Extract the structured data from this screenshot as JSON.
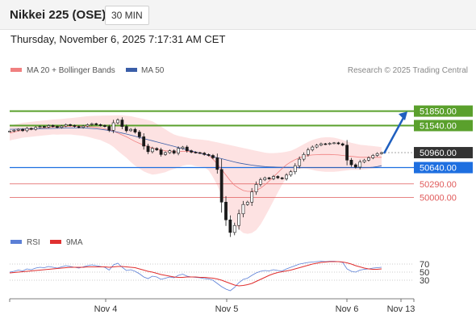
{
  "header": {
    "title": "Nikkei 225 (OSE)",
    "timeframe": "30 MIN",
    "datetime": "Thursday, November 6, 2025 7:17:31 AM CET"
  },
  "legend": {
    "bb_label": "MA 20 + Bollinger Bands",
    "ma50_label": "MA 50",
    "credit": "Research © 2025 Trading Central",
    "rsi_label": "RSI",
    "rsi_ma_label": "9MA"
  },
  "colors": {
    "bb_fill": "#fde2e2",
    "ma20": "#f08080",
    "ma50": "#3a5ea8",
    "candle": "#1a1a1a",
    "resistance": "#5aa02c",
    "support_blue": "#1e6fe0",
    "support_red": "#e05a5a",
    "rsi": "#5b7fd6",
    "rsi_ma": "#e03030",
    "arrow": "#1f5fbf",
    "current": "#333333"
  },
  "chart_data": [
    {
      "type": "candlestick",
      "title": "Nikkei 225 (OSE)",
      "ylim": [
        49300,
        52500
      ],
      "x_ticks": [
        "Nov 4",
        "Nov 5",
        "Nov 6",
        "Nov 13"
      ],
      "series": [
        {
          "name": "Price (close)",
          "values": [
            51420,
            51440,
            51460,
            51430,
            51480,
            51460,
            51500,
            51520,
            51510,
            51540,
            51520,
            51500,
            51530,
            51560,
            51540,
            51520,
            51500,
            51530,
            51560,
            51580,
            51560,
            51540,
            51520,
            51440,
            51600,
            51660,
            51520,
            51430,
            51460,
            51400,
            51300,
            51100,
            50980,
            51050,
            51020,
            50920,
            50960,
            51000,
            50950,
            51050,
            51080,
            51000,
            50970,
            50960,
            50950,
            50920,
            50900,
            50850,
            50600,
            49900,
            49520,
            49250,
            49400,
            49650,
            49850,
            49900,
            50120,
            50280,
            50380,
            50420,
            50400,
            50450,
            50420,
            50400,
            50480,
            50550,
            50680,
            50820,
            50920,
            51020,
            51080,
            51120,
            51150,
            51140,
            51160,
            51170,
            51150,
            51120,
            50800,
            50700,
            50650,
            50760,
            50800,
            50850,
            50900,
            50940,
            50960
          ]
        },
        {
          "name": "MA 20",
          "values": [
            51380,
            51400,
            51420,
            51440,
            51450,
            51460,
            51470,
            51480,
            51490,
            51500,
            51510,
            51510,
            51515,
            51520,
            51525,
            51525,
            51525,
            51525,
            51520,
            51510,
            51500,
            51490,
            51470,
            51450,
            51420,
            51380,
            51340,
            51300,
            51250,
            51200,
            51160,
            51120,
            51090,
            51060,
            51040,
            51020,
            51000,
            50990,
            50980,
            50980,
            50990,
            50990,
            50980,
            50960,
            50950,
            50940,
            50900,
            50820,
            50720,
            50600,
            50480,
            50360,
            50260,
            50200,
            50150,
            50130,
            50130,
            50150,
            50200,
            50270,
            50350,
            50440,
            50530,
            50620,
            50700,
            50760,
            50810,
            50850,
            50880,
            50900,
            50910,
            50915,
            50920,
            50920,
            50920,
            50915,
            50910,
            50900,
            50890,
            50880,
            50870,
            50860,
            50860,
            50860,
            50860,
            50860,
            50860
          ]
        },
        {
          "name": "MA 50",
          "values": [
            51460,
            51462,
            51464,
            51466,
            51468,
            51470,
            51472,
            51474,
            51476,
            51478,
            51480,
            51482,
            51484,
            51486,
            51488,
            51490,
            51490,
            51488,
            51484,
            51478,
            51470,
            51460,
            51448,
            51434,
            51418,
            51400,
            51380,
            51358,
            51334,
            51310,
            51286,
            51262,
            51238,
            51214,
            51190,
            51166,
            51142,
            51118,
            51094,
            51070,
            51046,
            51022,
            50998,
            50974,
            50950,
            50926,
            50902,
            50878,
            50854,
            50830,
            50806,
            50782,
            50760,
            50740,
            50722,
            50706,
            50692,
            50680,
            50670,
            50662,
            50656,
            50652,
            50649,
            50647,
            50646,
            50645,
            50644,
            50643,
            50642,
            50641,
            50640,
            50640,
            50640,
            50640,
            50640,
            50640,
            50640,
            50640,
            50640,
            50640,
            50640,
            50640,
            50640,
            50640,
            50650,
            50662,
            50680
          ]
        },
        {
          "name": "Bollinger upper",
          "values": [
            51540,
            51560,
            51580,
            51600,
            51610,
            51620,
            51630,
            51640,
            51650,
            51660,
            51670,
            51675,
            51680,
            51690,
            51700,
            51710,
            51720,
            51730,
            51740,
            51745,
            51750,
            51752,
            51754,
            51756,
            51758,
            51760,
            51760,
            51750,
            51740,
            51720,
            51700,
            51680,
            51660,
            51630,
            51580,
            51520,
            51460,
            51400,
            51350,
            51320,
            51300,
            51280,
            51260,
            51250,
            51240,
            51230,
            51220,
            51200,
            51180,
            51160,
            51140,
            51120,
            51100,
            51080,
            51060,
            51040,
            51020,
            51000,
            50980,
            50960,
            50950,
            50950,
            50955,
            50965,
            50980,
            51000,
            51040,
            51090,
            51140,
            51190,
            51230,
            51260,
            51280,
            51290,
            51290,
            51280,
            51260,
            51230,
            51200,
            51170,
            51150,
            51130,
            51120,
            51110,
            51100,
            51090,
            51080
          ]
        },
        {
          "name": "Bollinger lower",
          "values": [
            51220,
            51240,
            51260,
            51280,
            51290,
            51300,
            51310,
            51320,
            51330,
            51340,
            51350,
            51345,
            51350,
            51350,
            51350,
            51340,
            51330,
            51320,
            51300,
            51275,
            51250,
            51228,
            51186,
            51144,
            51082,
            51000,
            50920,
            50850,
            50760,
            50680,
            50620,
            50560,
            50520,
            50490,
            50500,
            50520,
            50540,
            50580,
            50610,
            50640,
            50680,
            50700,
            50700,
            50670,
            50660,
            50650,
            50580,
            50440,
            50260,
            50040,
            49820,
            49600,
            49420,
            49320,
            49240,
            49220,
            49240,
            49300,
            49420,
            49580,
            49750,
            49930,
            50105,
            50275,
            50420,
            50520,
            50580,
            50610,
            50620,
            50610,
            50590,
            50570,
            50560,
            50550,
            50550,
            50550,
            50560,
            50570,
            50580,
            50590,
            50590,
            50590,
            50600,
            50610,
            50620,
            50630,
            50640
          ]
        }
      ],
      "levels": [
        {
          "label": "51850.00",
          "value": 51850,
          "kind": "resistance"
        },
        {
          "label": "51540.00",
          "value": 51540,
          "kind": "resistance"
        },
        {
          "label": "50960.00",
          "value": 50960,
          "kind": "current"
        },
        {
          "label": "50640.00",
          "value": 50640,
          "kind": "support_blue"
        },
        {
          "label": "50290.00",
          "value": 50290,
          "kind": "support_red"
        },
        {
          "label": "50000.00",
          "value": 50000,
          "kind": "support_red"
        }
      ],
      "forecast_arrow": {
        "from": 50960,
        "to": 51840
      }
    },
    {
      "type": "line",
      "title": "RSI",
      "ylim": [
        0,
        100
      ],
      "y_ticks": [
        30,
        50,
        70
      ],
      "series": [
        {
          "name": "RSI",
          "values": [
            50,
            52,
            55,
            53,
            58,
            56,
            60,
            62,
            61,
            64,
            62,
            60,
            63,
            66,
            64,
            62,
            60,
            63,
            66,
            68,
            66,
            64,
            62,
            55,
            68,
            72,
            62,
            54,
            56,
            52,
            46,
            38,
            34,
            40,
            38,
            32,
            35,
            38,
            36,
            42,
            45,
            40,
            38,
            37,
            36,
            34,
            33,
            30,
            22,
            14,
            8,
            4,
            12,
            24,
            32,
            35,
            42,
            48,
            52,
            54,
            53,
            56,
            54,
            53,
            58,
            62,
            66,
            70,
            72,
            74,
            75,
            76,
            77,
            76,
            77,
            77,
            76,
            74,
            58,
            52,
            50,
            55,
            57,
            58,
            60,
            61,
            62
          ]
        },
        {
          "name": "9MA",
          "values": [
            48,
            49,
            50,
            51,
            52,
            53,
            54,
            55,
            56,
            57,
            58,
            59,
            60,
            61,
            62,
            62,
            62,
            62,
            63,
            63,
            63,
            63,
            63,
            62,
            63,
            64,
            64,
            63,
            62,
            61,
            58,
            55,
            52,
            50,
            47,
            44,
            42,
            40,
            38,
            37,
            37,
            38,
            38,
            38,
            37,
            37,
            36,
            35,
            33,
            30,
            26,
            22,
            18,
            16,
            17,
            19,
            22,
            27,
            32,
            37,
            42,
            46,
            49,
            51,
            53,
            55,
            58,
            61,
            64,
            67,
            70,
            72,
            74,
            75,
            76,
            76,
            76,
            75,
            73,
            70,
            66,
            63,
            60,
            58,
            57,
            57,
            58
          ]
        }
      ]
    }
  ]
}
